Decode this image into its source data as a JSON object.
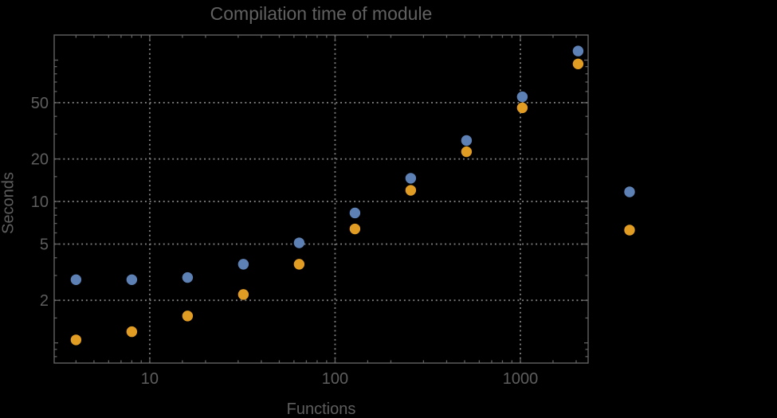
{
  "chart_data": {
    "type": "scatter",
    "title": "Compilation time of module",
    "xlabel": "Functions",
    "ylabel": "Seconds",
    "x_axis": {
      "scale": "log",
      "range": [
        3.05,
        2320
      ],
      "major_ticks": [
        10,
        100,
        1000
      ],
      "major_labels": [
        "10",
        "100",
        "1000"
      ]
    },
    "y_axis": {
      "scale": "log",
      "range": [
        0.72,
        150.5
      ],
      "major_ticks": [
        2,
        5,
        10,
        20,
        50
      ],
      "major_labels": [
        "2",
        "5",
        "10",
        "20",
        "50"
      ],
      "unlabeled_medium_ticks": [
        1,
        100
      ]
    },
    "grid": {
      "style": "dotted",
      "on": true
    },
    "series": [
      {
        "name": "series-1-blue",
        "color": "#5e81b5",
        "marker": "circle",
        "points": [
          [
            4,
            2.8
          ],
          [
            8,
            2.8
          ],
          [
            16,
            2.9
          ],
          [
            32,
            3.6
          ],
          [
            64,
            5.1
          ],
          [
            128,
            8.3
          ],
          [
            256,
            14.6
          ],
          [
            512,
            27
          ],
          [
            1024,
            55
          ],
          [
            2048,
            116
          ]
        ]
      },
      {
        "name": "series-2-orange",
        "color": "#e19c24",
        "marker": "circle",
        "points": [
          [
            4,
            1.05
          ],
          [
            8,
            1.2
          ],
          [
            16,
            1.55
          ],
          [
            32,
            2.2
          ],
          [
            64,
            3.6
          ],
          [
            128,
            6.4
          ],
          [
            256,
            12
          ],
          [
            512,
            22.5
          ],
          [
            1024,
            46
          ],
          [
            2048,
            94
          ]
        ]
      }
    ],
    "legend": {
      "position": "right-outside",
      "items": [
        {
          "name": "legend-series-1",
          "color": "#5e81b5"
        },
        {
          "name": "legend-series-2",
          "color": "#e19c24"
        }
      ]
    }
  },
  "colors": {
    "background": "#000000",
    "frame": "#616161",
    "text": "#5e5e5e",
    "gridline": "#7d7d7d"
  }
}
